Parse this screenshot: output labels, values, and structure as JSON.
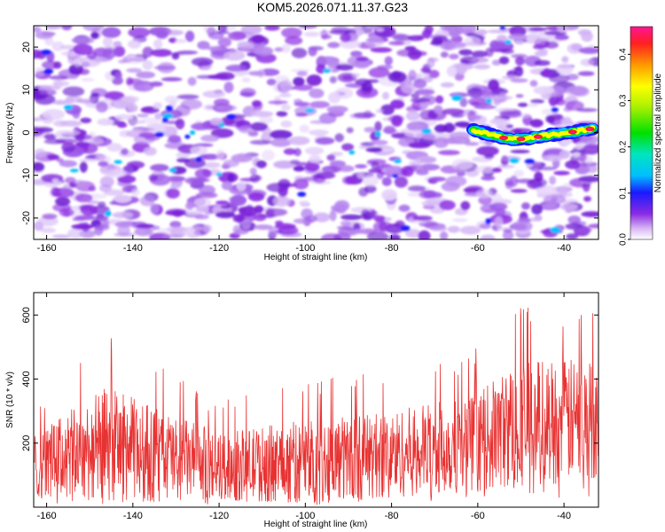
{
  "title": "KOM5.2026.071.11.37.G23",
  "chart_data": [
    {
      "type": "heatmap",
      "title": "KOM5.2026.071.11.37.G23",
      "xlabel": "Height of straight line (km)",
      "ylabel": "Frequency (Hz)",
      "xlim": [
        -163,
        -32
      ],
      "ylim": [
        -25,
        25
      ],
      "xticks": [
        -160,
        -140,
        -120,
        -100,
        -80,
        -60,
        -40
      ],
      "yticks": [
        -20,
        -10,
        0,
        10,
        20
      ],
      "colorbar": {
        "label": "Normalized spectral amplitude",
        "range": [
          0.0,
          0.46
        ],
        "ticks": [
          "0.0",
          "0.1",
          "0.2",
          "0.3",
          "0.4"
        ]
      },
      "signal_trace": {
        "description_points": [
          {
            "x": -61,
            "y": 0.5
          },
          {
            "x": -57,
            "y": -0.5
          },
          {
            "x": -53,
            "y": -1.5
          },
          {
            "x": -49,
            "y": -1.5
          },
          {
            "x": -45,
            "y": -0.8
          },
          {
            "x": -41,
            "y": -0.3
          },
          {
            "x": -37,
            "y": 0.3
          },
          {
            "x": -33,
            "y": 1.0
          }
        ],
        "peak_amplitude": 0.45
      }
    },
    {
      "type": "line",
      "xlabel": "Height of straight line (km)",
      "ylabel": "SNR (10 * v/v)",
      "xlim": [
        -163,
        -32
      ],
      "ylim": [
        0,
        670
      ],
      "xticks": [
        -160,
        -140,
        -120,
        -100,
        -80,
        -60,
        -40
      ],
      "yticks": [
        200,
        400,
        600
      ],
      "series": [
        {
          "name": "SNR",
          "color": "#e83232",
          "envelope": [
            {
              "x": -163,
              "low": 40,
              "high": 320
            },
            {
              "x": -146,
              "low": 30,
              "high": 550
            },
            {
              "x": -120,
              "low": 30,
              "high": 330
            },
            {
              "x": -100,
              "low": 20,
              "high": 400
            },
            {
              "x": -80,
              "low": 40,
              "high": 430
            },
            {
              "x": -60,
              "low": 60,
              "high": 500
            },
            {
              "x": -50,
              "low": 80,
              "high": 660
            },
            {
              "x": -32,
              "low": 100,
              "high": 640
            }
          ]
        }
      ]
    }
  ]
}
